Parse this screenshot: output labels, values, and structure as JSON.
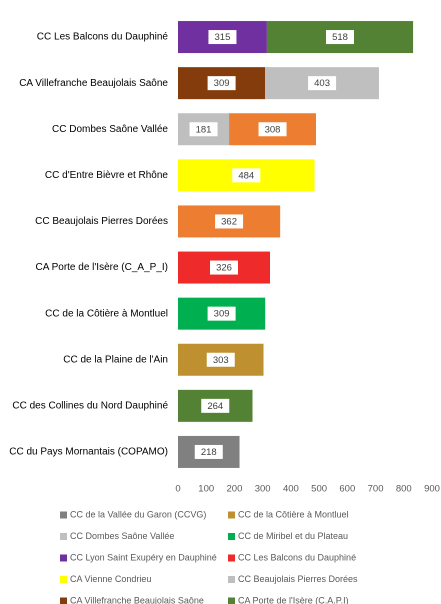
{
  "chart_data": {
    "type": "stacked_barh",
    "categories": [
      "CC Les Balcons du Dauphiné",
      "CA Villefranche Beaujolais Saône",
      "CC Dombes Saône Vallée",
      "CC d'Entre Bièvre et Rhône",
      "CC Beaujolais Pierres Dorées",
      "CA Porte de l'Isère (C_A_P_I)",
      "CC de la Côtière à Montluel",
      "CC de la Plaine de l'Ain",
      "CC des Collines du Nord Dauphiné",
      "CC du Pays Mornantais (COPAMO)"
    ],
    "series": [
      {
        "name": "CC de la Vallée du Garon (CCVG)",
        "color": "#808080",
        "values": [
          null,
          null,
          null,
          null,
          null,
          null,
          null,
          null,
          null,
          218
        ]
      },
      {
        "name": "CC Dombes Saône Vallée",
        "color": "#bfbfbf",
        "values": [
          null,
          null,
          181,
          null,
          null,
          null,
          null,
          null,
          null,
          null
        ]
      },
      {
        "name": "CC Lyon Saint Exupéry en Dauphiné",
        "color": "#7030a0",
        "values": [
          315,
          null,
          null,
          null,
          null,
          null,
          null,
          null,
          null,
          null
        ]
      },
      {
        "name": "CA Vienne Condrieu",
        "color": "#ffff00",
        "values": [
          null,
          null,
          null,
          484,
          null,
          null,
          null,
          null,
          null,
          null
        ]
      },
      {
        "name": "CA Villefranche Beaujolais Saône",
        "color": "#843c0c",
        "values": [
          null,
          309,
          null,
          null,
          null,
          null,
          null,
          null,
          null,
          null
        ]
      },
      {
        "name": "CC de la Côtière à Montluel",
        "color": "#bf9030",
        "values": [
          null,
          null,
          null,
          null,
          null,
          null,
          null,
          303,
          null,
          null
        ]
      },
      {
        "name": "CC de Miribel et du Plateau",
        "color": "#00b050",
        "values": [
          null,
          null,
          null,
          null,
          null,
          null,
          309,
          null,
          null,
          null
        ]
      },
      {
        "name": "CC Les Balcons du Dauphiné",
        "color": "#ee2a2a",
        "values": [
          null,
          null,
          null,
          null,
          null,
          326,
          null,
          null,
          null,
          null
        ]
      },
      {
        "name": "CC Beaujolais Pierres Dorées",
        "color": "#bfbfbf",
        "values": [
          null,
          403,
          null,
          null,
          null,
          null,
          null,
          null,
          null,
          null
        ]
      },
      {
        "name": "CA Porte de l'Isère (C.A.P.I)",
        "color": "#548235",
        "values": [
          518,
          null,
          null,
          null,
          null,
          null,
          null,
          null,
          264,
          null
        ]
      },
      {
        "color": "#ed7d31",
        "values": [
          null,
          null,
          308,
          null,
          362,
          null,
          null,
          null,
          null,
          null
        ]
      }
    ],
    "xlim": [
      0,
      900
    ],
    "xticks": [
      0,
      100,
      200,
      300,
      400,
      500,
      600,
      700,
      800,
      900
    ],
    "grid": false
  }
}
